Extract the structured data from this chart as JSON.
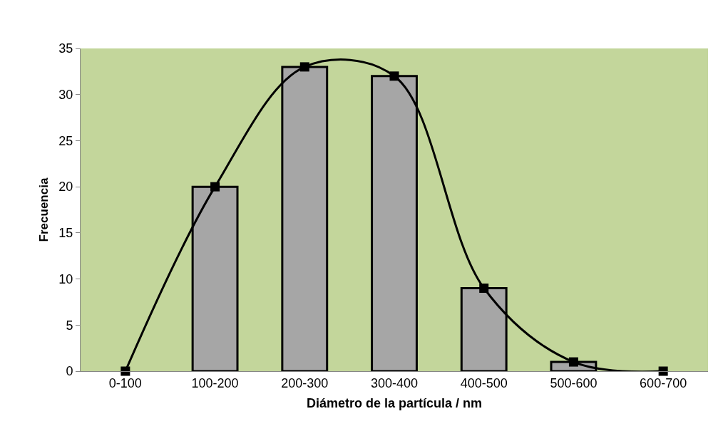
{
  "chart_data": {
    "type": "bar",
    "xlabel": "Diámetro de la partícula / nm",
    "ylabel": "Frecuencia",
    "categories": [
      "0-100",
      "100-200",
      "200-300",
      "300-400",
      "400-500",
      "500-600",
      "600-700"
    ],
    "series": [
      {
        "color": "#a6a6a6",
        "values": [
          0,
          20,
          33,
          32,
          9,
          1,
          0
        ]
      },
      {
        "type": "line",
        "color": "#000000",
        "values": [
          0,
          20,
          33,
          32,
          9,
          1,
          0
        ]
      }
    ],
    "ylim": [
      0,
      35
    ],
    "yticks": [
      0,
      5,
      10,
      15,
      20,
      25,
      30,
      35
    ],
    "grid": false,
    "legend": false,
    "marker": "square",
    "line_style": "solid"
  }
}
